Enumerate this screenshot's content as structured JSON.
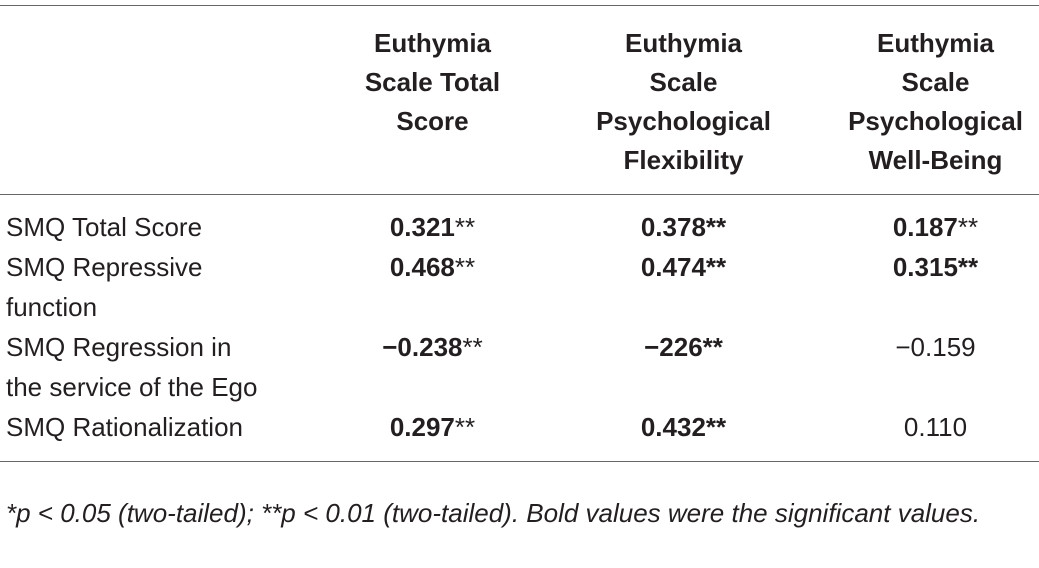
{
  "table": {
    "header": [
      [],
      [
        "Euthymia",
        "Scale Total",
        "Score"
      ],
      [
        "Euthymia",
        "Scale",
        "Psychological",
        "Flexibility"
      ],
      [
        "Euthymia",
        "Scale",
        "Psychological",
        "Well-Being"
      ]
    ],
    "rows": [
      {
        "label": [
          "SMQ Total Score"
        ],
        "cells": [
          [
            {
              "text": "0.321",
              "bold": true
            },
            {
              "text": "**",
              "bold": false
            }
          ],
          [
            {
              "text": "0.378**",
              "bold": true
            }
          ],
          [
            {
              "text": "0.187",
              "bold": true
            },
            {
              "text": "**",
              "bold": false
            }
          ]
        ]
      },
      {
        "label": [
          "SMQ Repressive",
          "function"
        ],
        "cells": [
          [
            {
              "text": "0.468",
              "bold": true
            },
            {
              "text": "**",
              "bold": false
            }
          ],
          [
            {
              "text": "0.474**",
              "bold": true
            }
          ],
          [
            {
              "text": "0.315**",
              "bold": true
            }
          ]
        ]
      },
      {
        "label": [
          "SMQ Regression in",
          "the service of the Ego"
        ],
        "cells": [
          [
            {
              "text": "−0.238",
              "bold": true
            },
            {
              "text": "**",
              "bold": false
            }
          ],
          [
            {
              "text": "−226**",
              "bold": true
            }
          ],
          [
            {
              "text": "−0.159",
              "bold": false
            }
          ]
        ]
      },
      {
        "label": [
          "SMQ Rationalization"
        ],
        "cells": [
          [
            {
              "text": "0.297",
              "bold": true
            },
            {
              "text": "**",
              "bold": false
            }
          ],
          [
            {
              "text": "0.432**",
              "bold": true
            }
          ],
          [
            {
              "text": "0.110",
              "bold": false
            }
          ]
        ]
      }
    ]
  },
  "footnote": "*p < 0.05 (two-tailed); **p < 0.01 (two-tailed). Bold values were the significant values."
}
